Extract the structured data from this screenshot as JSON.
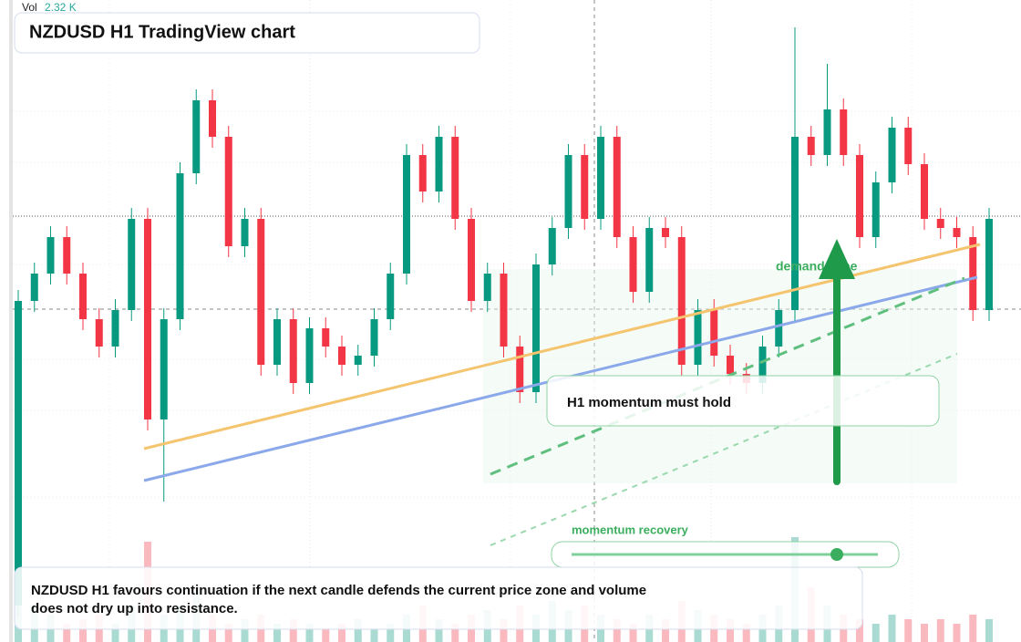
{
  "header": {
    "vol_label": "Vol",
    "vol_value": "2.32 K",
    "title": "NZDUSD H1 TradingView chart"
  },
  "annotations": {
    "zone": "demand zone",
    "callout": "H1 momentum must hold",
    "slider": "momentum recovery",
    "footer_line1": "NZDUSD H1 favours continuation if the next candle defends the current price zone and volume",
    "footer_line2": "does not dry up into resistance."
  },
  "candles": {
    "up_color": "#089981",
    "down_color": "#f23645",
    "open": [
      40,
      374,
      404,
      444,
      404,
      354,
      324,
      364,
      464,
      244,
      354,
      514,
      594,
      554,
      434,
      464,
      304,
      354,
      284,
      344,
      324,
      304,
      314,
      354,
      404,
      534,
      494,
      554,
      464,
      374,
      404,
      324,
      274,
      414,
      454,
      534,
      464,
      554,
      444,
      384,
      454,
      444,
      304,
      364,
      314,
      294,
      284,
      324,
      364,
      554,
      534,
      584,
      534,
      444,
      504,
      564,
      524,
      464,
      454,
      444,
      364
    ],
    "high": [
      386,
      416,
      456,
      456,
      416,
      366,
      376,
      476,
      476,
      366,
      526,
      606,
      606,
      566,
      476,
      476,
      366,
      366,
      356,
      356,
      336,
      326,
      366,
      416,
      546,
      546,
      566,
      566,
      476,
      416,
      416,
      336,
      426,
      466,
      546,
      546,
      566,
      566,
      456,
      466,
      466,
      456,
      376,
      376,
      326,
      306,
      336,
      376,
      674,
      566,
      634,
      596,
      546,
      516,
      576,
      576,
      536,
      476,
      466,
      456,
      476
    ],
    "low": [
      28,
      362,
      392,
      392,
      342,
      312,
      312,
      352,
      232,
      154,
      342,
      502,
      542,
      422,
      422,
      292,
      292,
      272,
      272,
      312,
      292,
      292,
      302,
      342,
      392,
      482,
      482,
      452,
      362,
      362,
      312,
      262,
      262,
      402,
      442,
      452,
      452,
      432,
      372,
      372,
      432,
      292,
      292,
      302,
      282,
      272,
      272,
      312,
      352,
      522,
      522,
      522,
      432,
      432,
      492,
      512,
      452,
      442,
      432,
      352,
      352
    ],
    "close": [
      374,
      404,
      444,
      404,
      354,
      324,
      364,
      464,
      244,
      354,
      514,
      594,
      554,
      434,
      464,
      304,
      354,
      284,
      344,
      324,
      304,
      314,
      354,
      404,
      534,
      494,
      554,
      464,
      374,
      404,
      324,
      274,
      414,
      454,
      534,
      464,
      554,
      444,
      384,
      454,
      444,
      304,
      364,
      314,
      294,
      284,
      324,
      364,
      554,
      534,
      584,
      534,
      444,
      504,
      564,
      524,
      464,
      454,
      444,
      364,
      464
    ],
    "volume": [
      130,
      40,
      30,
      20,
      25,
      30,
      20,
      40,
      110,
      30,
      40,
      60,
      30,
      20,
      25,
      30,
      20,
      25,
      20,
      15,
      20,
      25,
      15,
      20,
      30,
      40,
      25,
      20,
      30,
      35,
      25,
      40,
      30,
      45,
      35,
      40,
      30,
      25,
      20,
      30,
      25,
      45,
      35,
      30,
      25,
      20,
      30,
      40,
      115,
      60,
      40,
      30,
      25,
      20,
      30,
      25,
      20,
      25,
      20,
      30,
      25
    ]
  }
}
